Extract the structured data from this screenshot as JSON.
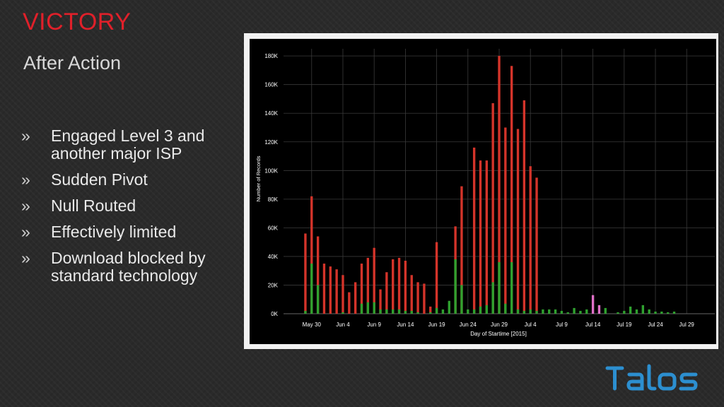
{
  "slide": {
    "title": "VICTORY",
    "subtitle": "After Action",
    "bullet_marker": "»",
    "bullets": [
      "Engaged Level 3 and another major ISP",
      "Sudden Pivot",
      "Null Routed",
      "Effectively limited",
      "Download blocked by standard technology"
    ],
    "logo_text": "TALOS"
  },
  "colors": {
    "title": "#e0202a",
    "red_series": "#d4342a",
    "green_series": "#2fa12f",
    "pink_series": "#e070c8",
    "chart_bg": "#000000",
    "logo": "#2c8fd0"
  },
  "chart_data": {
    "type": "bar",
    "xlabel": "Day of Startime [2015]",
    "ylabel": "Number of Records",
    "ylim": [
      0,
      185000
    ],
    "y_ticks": [
      "0K",
      "20K",
      "40K",
      "60K",
      "80K",
      "100K",
      "120K",
      "140K",
      "160K",
      "180K"
    ],
    "y_tick_values": [
      0,
      20000,
      40000,
      60000,
      80000,
      100000,
      120000,
      140000,
      160000,
      180000
    ],
    "x_ticks": [
      "May 30",
      "Jun 4",
      "Jun 9",
      "Jun 14",
      "Jun 19",
      "Jun 24",
      "Jun 29",
      "Jul 4",
      "Jul 9",
      "Jul 14",
      "Jul 19",
      "Jul 24",
      "Jul 29"
    ],
    "x_tick_day_index": [
      4,
      9,
      14,
      19,
      24,
      29,
      34,
      39,
      44,
      49,
      54,
      59,
      64
    ],
    "day_index_range": [
      -0.5,
      68.5
    ],
    "series": [
      {
        "name": "",
        "color": "red",
        "points": [
          [
            3,
            56000
          ],
          [
            4,
            82000
          ],
          [
            5,
            54000
          ],
          [
            6,
            35000
          ],
          [
            7,
            33000
          ],
          [
            8,
            31000
          ],
          [
            9,
            27000
          ],
          [
            10,
            15000
          ],
          [
            11,
            22000
          ],
          [
            12,
            35000
          ],
          [
            13,
            39000
          ],
          [
            14,
            46000
          ],
          [
            15,
            17000
          ],
          [
            16,
            29000
          ],
          [
            17,
            38000
          ],
          [
            18,
            39000
          ],
          [
            19,
            37000
          ],
          [
            20,
            27000
          ],
          [
            21,
            22000
          ],
          [
            22,
            21000
          ],
          [
            23,
            5000
          ],
          [
            24,
            50000
          ],
          [
            27,
            61000
          ],
          [
            28,
            89000
          ],
          [
            30,
            116000
          ],
          [
            31,
            107000
          ],
          [
            32,
            107000
          ],
          [
            33,
            147000
          ],
          [
            34,
            180000
          ],
          [
            35,
            130000
          ],
          [
            36,
            173000
          ],
          [
            37,
            129000
          ],
          [
            38,
            149000
          ],
          [
            39,
            103000
          ],
          [
            40,
            95000
          ]
        ]
      },
      {
        "name": "",
        "color": "green",
        "points": [
          [
            3,
            2000
          ],
          [
            4,
            35000
          ],
          [
            5,
            20000
          ],
          [
            9,
            1000
          ],
          [
            12,
            7000
          ],
          [
            13,
            8000
          ],
          [
            14,
            8000
          ],
          [
            15,
            3000
          ],
          [
            16,
            3000
          ],
          [
            17,
            3000
          ],
          [
            18,
            3000
          ],
          [
            19,
            2000
          ],
          [
            20,
            2000
          ],
          [
            21,
            1000
          ],
          [
            23,
            1000
          ],
          [
            24,
            4000
          ],
          [
            25,
            3000
          ],
          [
            26,
            9000
          ],
          [
            27,
            38000
          ],
          [
            28,
            20000
          ],
          [
            29,
            3000
          ],
          [
            30,
            3000
          ],
          [
            31,
            5000
          ],
          [
            32,
            6000
          ],
          [
            33,
            22000
          ],
          [
            34,
            36000
          ],
          [
            35,
            7000
          ],
          [
            36,
            36000
          ],
          [
            37,
            3000
          ],
          [
            38,
            2000
          ],
          [
            39,
            3000
          ],
          [
            40,
            2000
          ],
          [
            41,
            3000
          ],
          [
            42,
            3000
          ],
          [
            43,
            3000
          ],
          [
            44,
            2000
          ],
          [
            45,
            1000
          ],
          [
            46,
            4000
          ],
          [
            47,
            2000
          ],
          [
            48,
            3000
          ],
          [
            51,
            4000
          ],
          [
            53,
            1000
          ],
          [
            54,
            2000
          ],
          [
            55,
            5000
          ],
          [
            56,
            3000
          ],
          [
            57,
            6000
          ],
          [
            58,
            3000
          ],
          [
            59,
            1500
          ],
          [
            60,
            1500
          ],
          [
            61,
            1000
          ],
          [
            62,
            1500
          ]
        ]
      },
      {
        "name": "",
        "color": "pink",
        "points": [
          [
            49,
            13000
          ],
          [
            50,
            6000
          ]
        ]
      }
    ]
  }
}
